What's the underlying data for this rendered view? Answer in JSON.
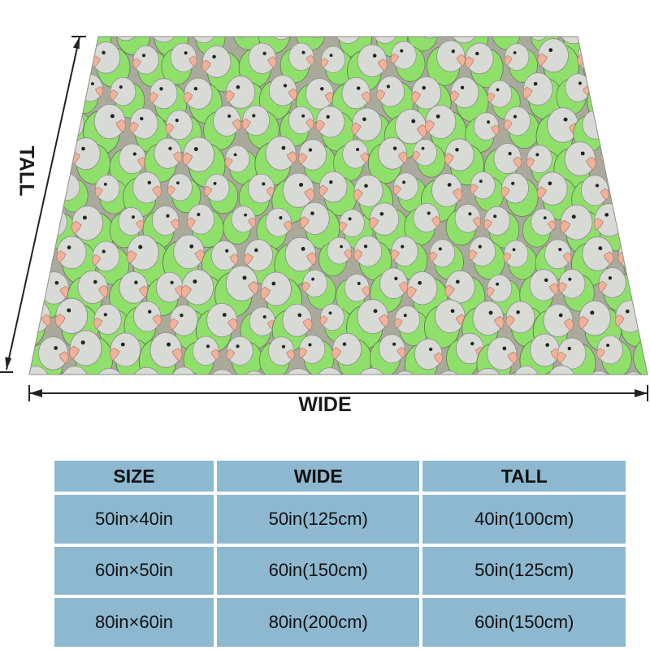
{
  "product": {
    "image_alt": "Green and grey quaker parrot pattern blanket",
    "pattern_colors": {
      "green": "#8fe06a",
      "grey": "#d8dad6",
      "beak": "#f0b29a",
      "background": "#a9aa9c"
    }
  },
  "dimensions": {
    "wide_label": "WIDE",
    "tall_label": "TALL"
  },
  "size_table": {
    "headers": [
      "SIZE",
      "WIDE",
      "TALL"
    ],
    "rows": [
      [
        "50in×40in",
        "50in(125cm)",
        "40in(100cm)"
      ],
      [
        "60in×50in",
        "60in(150cm)",
        "50in(125cm)"
      ],
      [
        "80in×60in",
        "80in(200cm)",
        "60in(150cm)"
      ]
    ],
    "cell_color": "#8db8d0"
  }
}
